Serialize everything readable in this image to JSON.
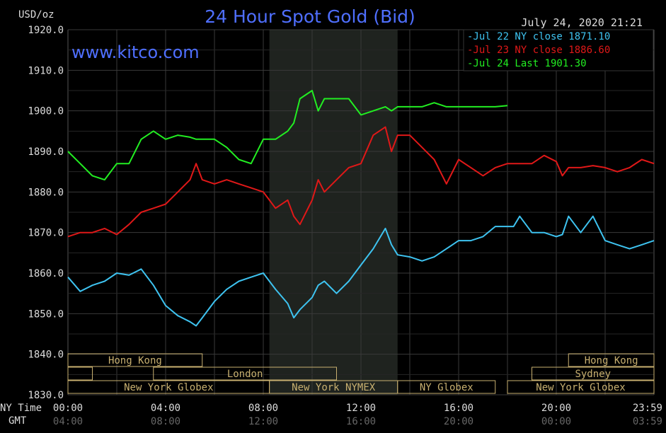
{
  "header": {
    "unit_label": "USD/oz",
    "title": "24 Hour Spot Gold (Bid)",
    "timestamp": "July 24, 2020 21:21",
    "watermark": "www.kitco.com"
  },
  "legend": {
    "items": [
      {
        "label": "Jul 22 NY close 1871.10",
        "color": "#3ec3f0"
      },
      {
        "label": "Jul 23 NY close 1886.60",
        "color": "#e01818"
      },
      {
        "label": "Jul 24 Last 1901.30",
        "color": "#22ee22"
      }
    ]
  },
  "time_axis": {
    "ny_label": "NY Time",
    "gmt_label": "GMT",
    "ny_ticks": [
      {
        "hour": 0,
        "label": "00:00"
      },
      {
        "hour": 4,
        "label": "04:00"
      },
      {
        "hour": 8,
        "label": "08:00"
      },
      {
        "hour": 12,
        "label": "12:00"
      },
      {
        "hour": 16,
        "label": "16:00"
      },
      {
        "hour": 20,
        "label": "20:00"
      },
      {
        "hour": 23.983,
        "label": "23:59"
      }
    ],
    "gmt_ticks": [
      {
        "hour": 0,
        "label": "04:00"
      },
      {
        "hour": 4,
        "label": "08:00"
      },
      {
        "hour": 8,
        "label": "12:00"
      },
      {
        "hour": 12,
        "label": "16:00"
      },
      {
        "hour": 16,
        "label": "20:00"
      },
      {
        "hour": 20,
        "label": "00:00"
      },
      {
        "hour": 23.983,
        "label": "03:59"
      }
    ]
  },
  "sessions": [
    {
      "label": "Hong Kong",
      "start": 0,
      "end": 5.5,
      "row": 0
    },
    {
      "label": "Hong Kong",
      "start": 20.5,
      "end": 24,
      "row": 0
    },
    {
      "label": "",
      "start": 0,
      "end": 1,
      "row": 1
    },
    {
      "label": "London",
      "start": 3.5,
      "end": 11,
      "row": 1
    },
    {
      "label": "Sydney",
      "start": 19,
      "end": 24,
      "row": 1
    },
    {
      "label": "New York Globex",
      "start": 0,
      "end": 8.25,
      "row": 2
    },
    {
      "label": "New York NYMEX",
      "start": 8.25,
      "end": 13.5,
      "row": 2
    },
    {
      "label": "NY Globex",
      "start": 13.5,
      "end": 17.5,
      "row": 2
    },
    {
      "label": "New York Globex",
      "start": 18,
      "end": 24,
      "row": 2
    }
  ],
  "chart_data": {
    "type": "line",
    "title": "24 Hour Spot Gold (Bid)",
    "ylabel": "USD/oz",
    "ylim": [
      1830,
      1920
    ],
    "yticks": [
      1830,
      1840,
      1850,
      1860,
      1870,
      1880,
      1890,
      1900,
      1910,
      1920
    ],
    "ytick_labels": [
      "1830.0",
      "1840.0",
      "1850.0",
      "1860.0",
      "1870.0",
      "1880.0",
      "1890.0",
      "1900.0",
      "1910.0",
      "1920.0"
    ],
    "xlim": [
      0,
      24
    ],
    "grid": true,
    "nymex_shade": [
      8.25,
      13.5
    ],
    "series": [
      {
        "name": "Jul 22 NY close 1871.10",
        "color": "#3ec3f0",
        "x": [
          0,
          0.5,
          1,
          1.5,
          2,
          2.5,
          3,
          3.5,
          4,
          4.5,
          5,
          5.25,
          5.5,
          6,
          6.5,
          7,
          7.5,
          8,
          8.5,
          9,
          9.25,
          9.5,
          10,
          10.25,
          10.5,
          11,
          11.5,
          12,
          12.5,
          13,
          13.25,
          13.5,
          14,
          14.5,
          15,
          15.5,
          16,
          16.5,
          17,
          17.5,
          18,
          18.25,
          18.5,
          19,
          19.5,
          20,
          20.25,
          20.5,
          21,
          21.5,
          22,
          22.5,
          23,
          23.5,
          24
        ],
        "y": [
          1859,
          1855.5,
          1857,
          1858,
          1860,
          1859.5,
          1861,
          1857,
          1852,
          1849.5,
          1848,
          1847,
          1849,
          1853,
          1856,
          1858,
          1859,
          1860,
          1856,
          1852.5,
          1849,
          1851,
          1854,
          1857,
          1858,
          1855,
          1858,
          1862,
          1866,
          1871,
          1867,
          1864.5,
          1864,
          1863,
          1864,
          1866,
          1868,
          1868,
          1869,
          1871.5,
          1871.5,
          1871.5,
          1874,
          1870,
          1870,
          1869,
          1869.5,
          1874,
          1870,
          1874,
          1868,
          1867,
          1866,
          1867,
          1868
        ]
      },
      {
        "name": "Jul 23 NY close 1886.60",
        "color": "#e01818",
        "x": [
          0,
          0.5,
          1,
          1.5,
          2,
          2.5,
          3,
          3.5,
          4,
          4.5,
          5,
          5.25,
          5.5,
          6,
          6.5,
          7,
          7.5,
          8,
          8.5,
          9,
          9.25,
          9.5,
          10,
          10.25,
          10.5,
          11,
          11.5,
          12,
          12.5,
          13,
          13.25,
          13.5,
          14,
          14.5,
          15,
          15.5,
          16,
          16.5,
          17,
          17.5,
          18,
          18.25,
          18.5,
          19,
          19.5,
          20,
          20.25,
          20.5,
          21,
          21.5,
          22,
          22.5,
          23,
          23.5,
          24
        ],
        "y": [
          1869,
          1870,
          1870,
          1871,
          1869.5,
          1872,
          1875,
          1876,
          1877,
          1880,
          1883,
          1887,
          1883,
          1882,
          1883,
          1882,
          1881,
          1880,
          1876,
          1878,
          1874,
          1872,
          1878,
          1883,
          1880,
          1883,
          1886,
          1887,
          1894,
          1896,
          1890,
          1894,
          1894,
          1891,
          1888,
          1882,
          1888,
          1886,
          1884,
          1886,
          1887,
          1887,
          1887,
          1887,
          1889,
          1887.5,
          1884,
          1886,
          1886,
          1886.5,
          1886,
          1885,
          1886,
          1888,
          1887
        ]
      },
      {
        "name": "Jul 24 Last 1901.30",
        "color": "#22ee22",
        "x": [
          0,
          0.5,
          1,
          1.5,
          2,
          2.5,
          3,
          3.5,
          4,
          4.5,
          5,
          5.25,
          5.5,
          6,
          6.5,
          7,
          7.5,
          8,
          8.5,
          9,
          9.25,
          9.5,
          10,
          10.25,
          10.5,
          11,
          11.5,
          12,
          12.5,
          13,
          13.25,
          13.5,
          14,
          14.5,
          15,
          15.5,
          16,
          16.5,
          17,
          17.5,
          18
        ],
        "y": [
          1890,
          1887,
          1884,
          1883,
          1887,
          1887,
          1893,
          1895,
          1893,
          1894,
          1893.5,
          1893,
          1893,
          1893,
          1891,
          1888,
          1887,
          1893,
          1893,
          1895,
          1897,
          1903,
          1905,
          1900,
          1903,
          1903,
          1903,
          1899,
          1900,
          1901,
          1900,
          1901,
          1901,
          1901,
          1902,
          1901,
          1901,
          1901,
          1901,
          1901,
          1901.3
        ]
      }
    ]
  }
}
